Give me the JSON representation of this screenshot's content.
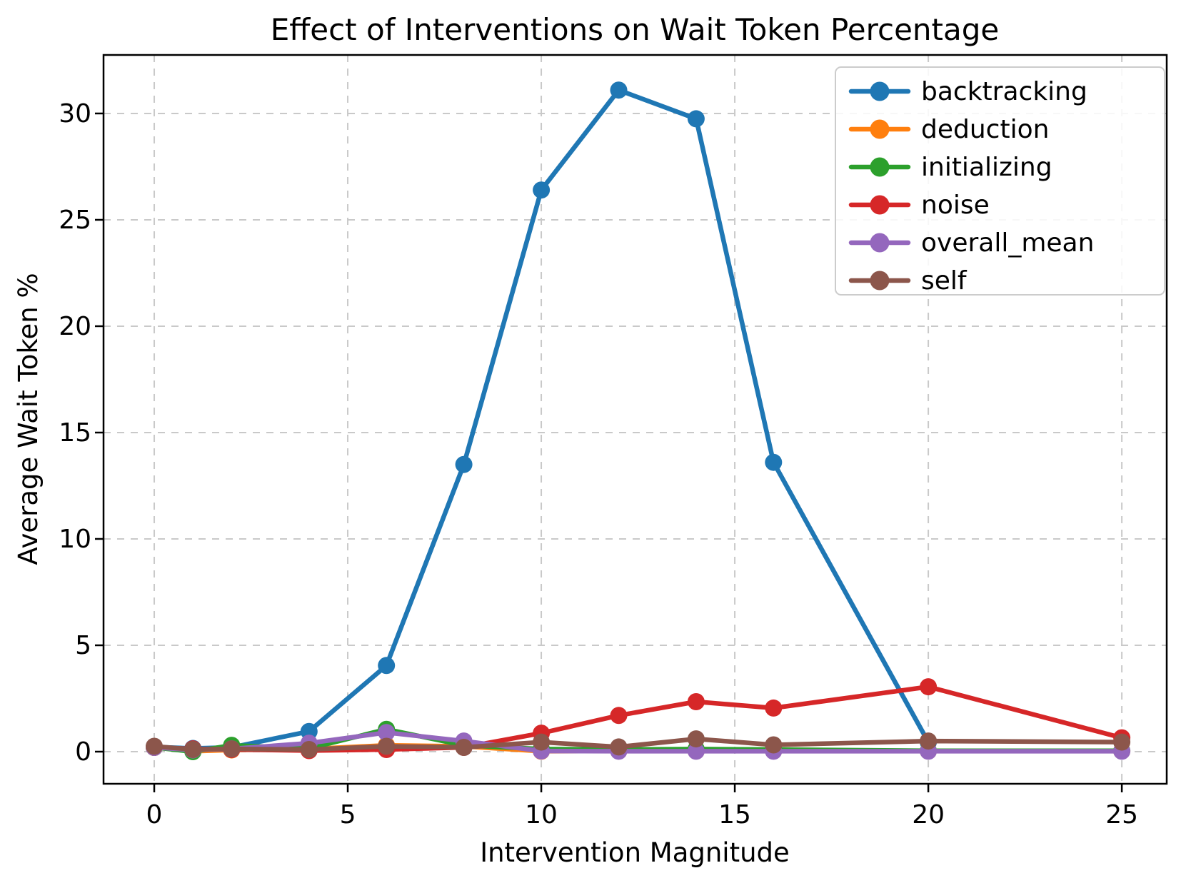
{
  "title": "Effect of Interventions on Wait Token Percentage",
  "chart_data": {
    "type": "line",
    "title": "Effect of Interventions on Wait Token Percentage",
    "xlabel": "Intervention Magnitude",
    "ylabel": "Average Wait Token %",
    "x": [
      0,
      1,
      2,
      4,
      6,
      8,
      10,
      12,
      14,
      16,
      20,
      25
    ],
    "series": [
      {
        "name": "backtracking",
        "color": "#1f77b4",
        "values": [
          0.22,
          0.15,
          0.2,
          0.95,
          4.05,
          13.5,
          26.4,
          31.1,
          29.75,
          13.6,
          0.45,
          null
        ]
      },
      {
        "name": "deduction",
        "color": "#ff7f0e",
        "values": [
          0.2,
          0.02,
          0.08,
          0.12,
          0.3,
          0.25,
          0.02,
          0.03,
          0.03,
          0.03,
          0.03,
          0.03
        ]
      },
      {
        "name": "initializing",
        "color": "#2ca02c",
        "values": [
          0.2,
          0.0,
          0.3,
          0.15,
          1.05,
          0.3,
          0.12,
          0.1,
          0.12,
          0.1,
          0.04,
          0.04
        ]
      },
      {
        "name": "noise",
        "color": "#d62728",
        "values": [
          0.2,
          0.13,
          0.1,
          0.05,
          0.1,
          0.2,
          0.87,
          1.7,
          2.35,
          2.05,
          3.05,
          0.65
        ]
      },
      {
        "name": "overall_mean",
        "color": "#9467bd",
        "values": [
          0.2,
          0.08,
          0.13,
          0.4,
          0.9,
          0.5,
          0.03,
          0.02,
          0.02,
          0.02,
          0.02,
          0.02
        ]
      },
      {
        "name": "self",
        "color": "#8c564b",
        "values": [
          0.25,
          0.1,
          0.13,
          0.1,
          0.25,
          0.2,
          0.45,
          0.22,
          0.6,
          0.32,
          0.5,
          0.45
        ]
      }
    ],
    "x_ticks": [
      0,
      5,
      10,
      15,
      20,
      25
    ],
    "y_ticks": [
      0,
      5,
      10,
      15,
      20,
      25,
      30
    ],
    "xlim": [
      -1.31,
      26.16
    ],
    "ylim": [
      -1.51,
      32.75
    ],
    "grid": true,
    "legend_position": "upper right",
    "legend": [
      "backtracking",
      "deduction",
      "initializing",
      "noise",
      "overall_mean",
      "self"
    ]
  },
  "colors": {
    "grid": "#c9c9c9",
    "spine": "#000000",
    "background": "#ffffff",
    "legend_border": "#cccccc",
    "legend_fill": "#ffffff"
  }
}
